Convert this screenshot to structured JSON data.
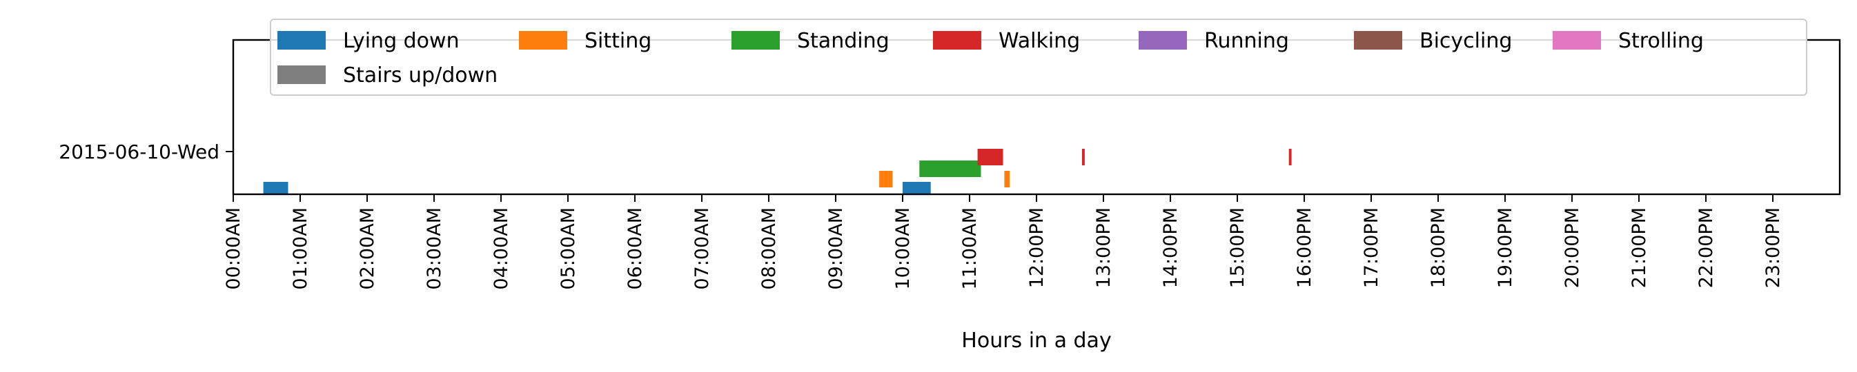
{
  "chart_data": {
    "type": "bar",
    "orientation": "horizontal-timeline",
    "title": "",
    "xlabel": "Hours in a day",
    "ylabel": "",
    "xlim": [
      0,
      24
    ],
    "x_tick_values": [
      0,
      1,
      2,
      3,
      4,
      5,
      6,
      7,
      8,
      9,
      10,
      11,
      12,
      13,
      14,
      15,
      16,
      17,
      18,
      19,
      20,
      21,
      22,
      23
    ],
    "x_tick_labels": [
      "00:00AM",
      "01:00AM",
      "02:00AM",
      "03:00AM",
      "04:00AM",
      "05:00AM",
      "06:00AM",
      "07:00AM",
      "08:00AM",
      "09:00AM",
      "10:00AM",
      "11:00AM",
      "12:00PM",
      "13:00PM",
      "14:00PM",
      "15:00PM",
      "16:00PM",
      "17:00PM",
      "18:00PM",
      "19:00PM",
      "20:00PM",
      "21:00PM",
      "22:00PM",
      "23:00PM"
    ],
    "y_categories": [
      "2015-06-10-Wed"
    ],
    "legend_position": "top",
    "grid": false,
    "series": [
      {
        "name": "Lying down",
        "color": "#1f77b4",
        "lane": 0,
        "intervals": [
          [
            0.45,
            0.82
          ],
          [
            10.0,
            10.42
          ]
        ]
      },
      {
        "name": "Sitting",
        "color": "#ff7f0e",
        "lane": 1,
        "intervals": [
          [
            9.65,
            9.85
          ],
          [
            11.52,
            11.6
          ]
        ]
      },
      {
        "name": "Standing",
        "color": "#2ca02c",
        "lane": 2,
        "intervals": [
          [
            10.25,
            11.17
          ]
        ]
      },
      {
        "name": "Walking",
        "color": "#d62728",
        "lane": 3,
        "intervals": [
          [
            11.12,
            11.5
          ],
          [
            12.68,
            12.72
          ],
          [
            15.77,
            15.81
          ]
        ]
      },
      {
        "name": "Running",
        "color": "#9467bd",
        "lane": 4,
        "intervals": []
      },
      {
        "name": "Bicycling",
        "color": "#8c564b",
        "lane": 5,
        "intervals": []
      },
      {
        "name": "Strolling",
        "color": "#e377c2",
        "lane": 6,
        "intervals": []
      },
      {
        "name": "Stairs up/down",
        "color": "#7f7f7f",
        "lane": 7,
        "intervals": []
      }
    ]
  }
}
